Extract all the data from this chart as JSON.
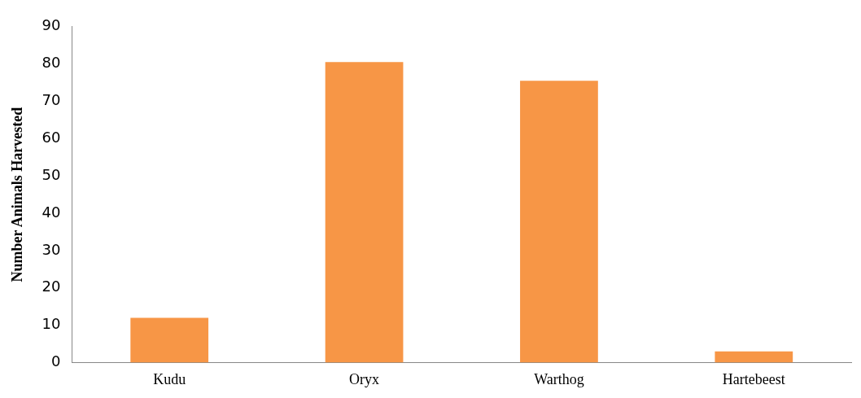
{
  "chart_data": {
    "type": "bar",
    "ylabel": "Number Animals Harvested",
    "categories": [
      "Kudu",
      "Oryx",
      "Warthog",
      "Hartebeest"
    ],
    "values": [
      12,
      80.5,
      75.5,
      3
    ],
    "color": "#f79646",
    "ylim": [
      0,
      90
    ],
    "yticks": [
      0,
      10,
      20,
      30,
      40,
      50,
      60,
      70,
      80,
      90
    ],
    "grid": false,
    "legend": false
  }
}
